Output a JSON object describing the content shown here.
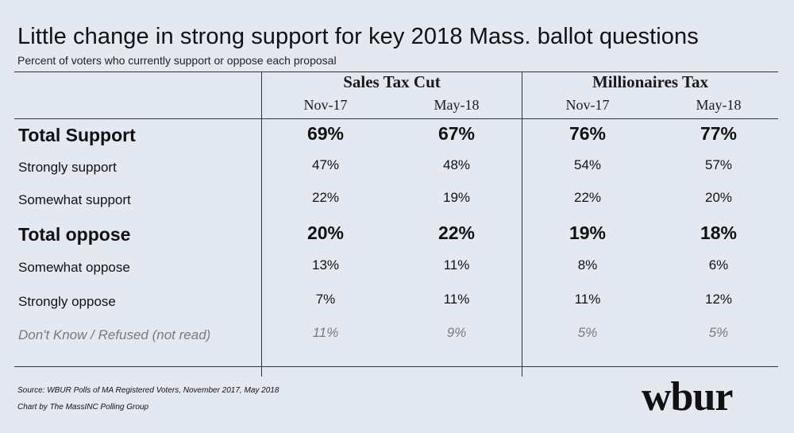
{
  "title": "Little change in strong support for key 2018 Mass. ballot questions",
  "subtitle": "Percent of voters who currently support or oppose each proposal",
  "chart_data": {
    "type": "table",
    "groups": [
      "Sales Tax Cut",
      "Millionaires Tax"
    ],
    "columns": [
      "Nov-17",
      "May-18",
      "Nov-17",
      "May-18"
    ],
    "rows": [
      {
        "label": "Total Support",
        "style": "bold",
        "values": [
          "69%",
          "67%",
          "76%",
          "77%"
        ]
      },
      {
        "label": "Strongly support",
        "style": "normal",
        "values": [
          "47%",
          "48%",
          "54%",
          "57%"
        ]
      },
      {
        "label": "Somewhat support",
        "style": "normal",
        "values": [
          "22%",
          "19%",
          "22%",
          "20%"
        ]
      },
      {
        "label": "Total oppose",
        "style": "bold",
        "values": [
          "20%",
          "22%",
          "19%",
          "18%"
        ]
      },
      {
        "label": "Somewhat oppose",
        "style": "normal",
        "values": [
          "13%",
          "11%",
          "8%",
          "6%"
        ]
      },
      {
        "label": "Strongly oppose",
        "style": "normal",
        "values": [
          "7%",
          "11%",
          "11%",
          "12%"
        ]
      },
      {
        "label": "Don't Know / Refused (not read)",
        "style": "muted",
        "values": [
          "11%",
          "9%",
          "5%",
          "5%"
        ]
      }
    ]
  },
  "footer": {
    "source": "Source: WBUR Polls of MA Registered Voters, November 2017, May 2018",
    "credit": "Chart by The MassINC Polling Group",
    "logo": "wbur"
  },
  "colors": {
    "background": "#e4e9f1",
    "text": "#111111",
    "muted": "#7a7a7a"
  }
}
